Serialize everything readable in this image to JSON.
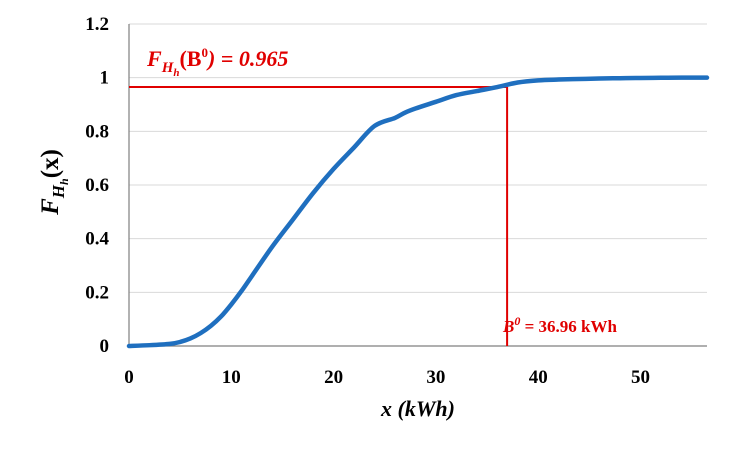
{
  "chart_data": {
    "type": "line",
    "xlabel": "x (kWh)",
    "ylabel_main": "F",
    "ylabel_sub": "H",
    "ylabel_subsub": "h",
    "ylabel_arg": "(x)",
    "xlim": [
      0,
      56.5
    ],
    "ylim": [
      0,
      1.2
    ],
    "x_ticks": [
      "0",
      "10",
      "20",
      "30",
      "40",
      "50"
    ],
    "y_ticks": [
      "0",
      "0.2",
      "0.4",
      "0.6",
      "0.8",
      "1",
      "1.2"
    ],
    "grid": "horizontal",
    "series": [
      {
        "x": [
          0,
          2,
          4,
          5,
          6,
          7,
          8,
          9,
          10,
          11,
          12,
          14,
          16,
          18,
          20,
          22,
          24,
          26,
          27,
          28,
          30,
          32,
          34,
          36,
          38,
          40,
          42,
          44,
          46,
          48,
          50,
          52,
          54,
          56.5
        ],
        "y": [
          0,
          0.003,
          0.008,
          0.015,
          0.028,
          0.048,
          0.075,
          0.11,
          0.155,
          0.205,
          0.26,
          0.37,
          0.47,
          0.57,
          0.66,
          0.74,
          0.82,
          0.85,
          0.87,
          0.885,
          0.91,
          0.935,
          0.95,
          0.965,
          0.982,
          0.99,
          0.993,
          0.995,
          0.997,
          0.998,
          0.999,
          0.9995,
          1.0,
          1.0
        ],
        "color": "#1f6fbf"
      }
    ],
    "marker_x": 36.96,
    "marker_y": 0.965,
    "marker_color": "#e00000",
    "annotation_top": {
      "F": "F",
      "H": "H",
      "h": "h",
      "arg_open": "(B",
      "sup": "0",
      "rest": ") = 0.965"
    },
    "annotation_bottom": {
      "B": "B",
      "sup": "0",
      "rest": " = 36.96 kWh"
    }
  }
}
